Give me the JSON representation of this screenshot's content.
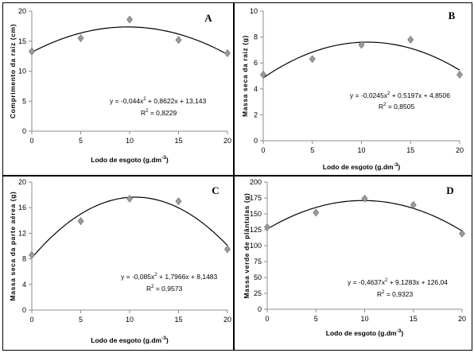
{
  "chart_data": [
    {
      "panel": "A",
      "type": "scatter",
      "xlabel": "Lodo de esgoto (g.dm",
      "xlabel_sup": "-3",
      "xlabel_end": ")",
      "ylabel": "Comprimento da raiz (cm)",
      "x": [
        0,
        5,
        10,
        15,
        20
      ],
      "y": [
        13.3,
        15.5,
        18.6,
        15.2,
        13.0
      ],
      "xlim": [
        0,
        20
      ],
      "ylim": [
        0,
        20
      ],
      "xticks": [
        "0",
        "5",
        "10",
        "15",
        "20"
      ],
      "yticks": [
        "0",
        "5",
        "10",
        "15",
        "20"
      ],
      "fit": {
        "a": -0.044,
        "b": 0.8622,
        "c": 13.143
      },
      "equation": {
        "pre": "y = -0,044x",
        "sup": "2",
        "post": " + 0,8622x + 13,143"
      },
      "r2": {
        "pre": "R",
        "sup": "2",
        "post": " = 0,8229"
      },
      "grid": false,
      "marker": "diamond",
      "marker_color": "#9a9a9a"
    },
    {
      "panel": "B",
      "type": "scatter",
      "xlabel": "Lodo de esgoto (g.dm",
      "xlabel_sup": "-3",
      "xlabel_end": ")",
      "ylabel": "Massa seca da raiz (g)",
      "x": [
        0,
        5,
        10,
        15,
        20
      ],
      "y": [
        5.1,
        6.3,
        7.4,
        7.8,
        5.1
      ],
      "xlim": [
        0,
        20
      ],
      "ylim": [
        0,
        10
      ],
      "xticks": [
        "0",
        "5",
        "10",
        "15",
        "20"
      ],
      "yticks": [
        "0",
        "2",
        "4",
        "6",
        "8",
        "10"
      ],
      "fit": {
        "a": -0.0245,
        "b": 0.5197,
        "c": 4.8506
      },
      "equation": {
        "pre": "y = -0,0245x",
        "sup": "2",
        "post": " + 0,5197x + 4,8506"
      },
      "r2": {
        "pre": "R",
        "sup": "2",
        "post": " = 0,8505"
      },
      "grid": false,
      "marker": "diamond",
      "marker_color": "#9a9a9a"
    },
    {
      "panel": "C",
      "type": "scatter",
      "xlabel": "Lodo de esgoto (g.dm",
      "xlabel_sup": "-3",
      "xlabel_end": ")",
      "ylabel": "Massa seca da parte aérea (g)",
      "x": [
        0,
        5,
        10,
        15,
        20
      ],
      "y": [
        8.6,
        13.9,
        17.4,
        17.0,
        9.5
      ],
      "xlim": [
        0,
        20
      ],
      "ylim": [
        0,
        20
      ],
      "xticks": [
        "0",
        "5",
        "10",
        "15",
        "20"
      ],
      "yticks": [
        "0",
        "4",
        "8",
        "12",
        "16",
        "20"
      ],
      "fit": {
        "a": -0.085,
        "b": 1.7966,
        "c": 8.1483
      },
      "equation": {
        "pre": "y = -0,085x",
        "sup": "2",
        "post": " + 1,7966x + 8,1483"
      },
      "r2": {
        "pre": "R",
        "sup": "2",
        "post": " = 0,9573"
      },
      "grid": false,
      "marker": "diamond",
      "marker_color": "#9a9a9a"
    },
    {
      "panel": "D",
      "type": "scatter",
      "xlabel": "Lodo de esgoto (g.dm",
      "xlabel_sup": "-3",
      "xlabel_end": ")",
      "ylabel": "Massa verde de plântulas (g)",
      "x": [
        0,
        5,
        10,
        15,
        20
      ],
      "y": [
        129,
        152,
        174,
        164,
        119
      ],
      "xlim": [
        0,
        20
      ],
      "ylim": [
        0,
        200
      ],
      "xticks": [
        "0",
        "5",
        "10",
        "15",
        "20"
      ],
      "yticks": [
        "0",
        "25",
        "50",
        "75",
        "100",
        "125",
        "150",
        "175",
        "200"
      ],
      "fit": {
        "a": -0.4637,
        "b": 9.1283,
        "c": 126.04
      },
      "equation": {
        "pre": "y = -0,4637x",
        "sup": "2",
        "post": " + 9,1283x + 126,04"
      },
      "r2": {
        "pre": "R",
        "sup": "2",
        "post": " = 0,9323"
      },
      "grid": false,
      "marker": "diamond",
      "marker_color": "#9a9a9a"
    }
  ]
}
